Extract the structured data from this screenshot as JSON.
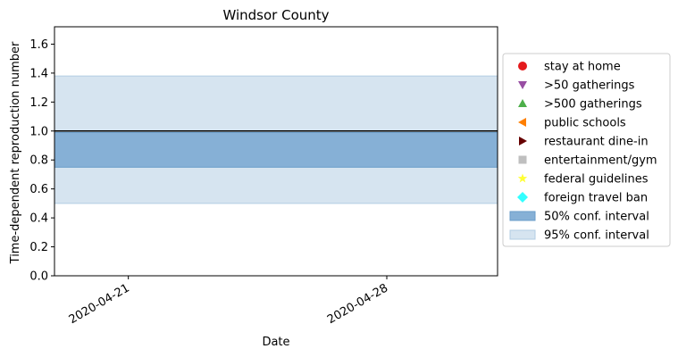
{
  "chart_data": {
    "type": "area",
    "title": "Windsor County",
    "xlabel": "Date",
    "ylabel": "Time-dependent reproduction number",
    "ylim": [
      0,
      1.72
    ],
    "yticks": [
      0.0,
      0.2,
      0.4,
      0.6,
      0.8,
      1.0,
      1.2,
      1.4,
      1.6
    ],
    "ytick_labels": [
      "0.0",
      "0.2",
      "0.4",
      "0.6",
      "0.8",
      "1.0",
      "1.2",
      "1.4",
      "1.6"
    ],
    "xlim": [
      "2020-04-19",
      "2020-05-01"
    ],
    "xticks": [
      "2020-04-21",
      "2020-04-28"
    ],
    "xtick_labels": [
      "2020-04-21",
      "2020-04-28"
    ],
    "reference_line": {
      "y": 1.0,
      "color": "#000000"
    },
    "bands": [
      {
        "name": "95% conf. interval",
        "low": 0.5,
        "high": 1.38,
        "color": "#d6e4f0",
        "edge": "#b3cde3"
      },
      {
        "name": "50% conf. interval",
        "low": 0.75,
        "high": 0.99,
        "color": "#86b0d6",
        "edge": "#6a9cc9"
      }
    ],
    "grid": false,
    "legend_position": "right, outside plot"
  },
  "legend": [
    {
      "label": "stay at home",
      "marker": "circle",
      "color": "#e41a1c"
    },
    {
      "label": ">50 gatherings",
      "marker": "triangle-down",
      "color": "#984ea3"
    },
    {
      "label": ">500 gatherings",
      "marker": "triangle-up",
      "color": "#4daf4a"
    },
    {
      "label": "public schools",
      "marker": "triangle-left",
      "color": "#ff7f00"
    },
    {
      "label": "restaurant dine-in",
      "marker": "triangle-right",
      "color": "#660000"
    },
    {
      "label": "entertainment/gym",
      "marker": "square",
      "color": "#bfbfbf"
    },
    {
      "label": "federal guidelines",
      "marker": "star",
      "color": "#ffff33"
    },
    {
      "label": "foreign travel ban",
      "marker": "diamond",
      "color": "#33ffff"
    },
    {
      "label": "50% conf. interval",
      "marker": "patch",
      "color": "#86b0d6",
      "edge": "#6a9cc9"
    },
    {
      "label": "95% conf. interval",
      "marker": "patch",
      "color": "#d6e4f0",
      "edge": "#b3cde3"
    }
  ]
}
